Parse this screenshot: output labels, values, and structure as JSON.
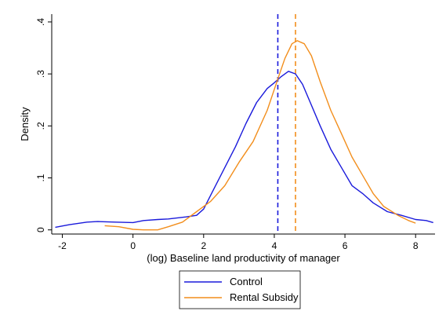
{
  "chart_data": {
    "type": "line",
    "xlabel": "(log) Baseline land productivity of manager",
    "ylabel": "Density",
    "xlim": [
      -2.3,
      8.55
    ],
    "ylim": [
      -0.008,
      0.415
    ],
    "xticks": [
      {
        "value": -2,
        "label": "-2"
      },
      {
        "value": 0,
        "label": "0"
      },
      {
        "value": 2,
        "label": "2"
      },
      {
        "value": 4,
        "label": "4"
      },
      {
        "value": 6,
        "label": "6"
      },
      {
        "value": 8,
        "label": "8"
      }
    ],
    "yticks": [
      {
        "value": 0,
        "label": "0"
      },
      {
        "value": 0.1,
        "label": ".1"
      },
      {
        "value": 0.2,
        "label": ".2"
      },
      {
        "value": 0.3,
        "label": ".3"
      },
      {
        "value": 0.4,
        "label": ".4"
      }
    ],
    "grid": false,
    "legend_position": "bottom",
    "series": [
      {
        "name": "Control",
        "color": "#1a1adb",
        "x": [
          -2.2,
          -1.8,
          -1.3,
          -1.0,
          -0.5,
          0.0,
          0.3,
          0.7,
          1.0,
          1.5,
          1.8,
          2.0,
          2.3,
          2.6,
          2.9,
          3.2,
          3.5,
          3.8,
          4.0,
          4.2,
          4.4,
          4.6,
          4.8,
          5.0,
          5.3,
          5.6,
          5.9,
          6.2,
          6.5,
          6.8,
          7.2,
          7.6,
          8.0,
          8.3,
          8.5
        ],
        "y": [
          0.005,
          0.01,
          0.015,
          0.016,
          0.015,
          0.014,
          0.018,
          0.02,
          0.021,
          0.025,
          0.028,
          0.04,
          0.08,
          0.12,
          0.16,
          0.205,
          0.245,
          0.272,
          0.283,
          0.295,
          0.305,
          0.3,
          0.28,
          0.248,
          0.2,
          0.155,
          0.12,
          0.085,
          0.07,
          0.052,
          0.035,
          0.028,
          0.02,
          0.018,
          0.014
        ]
      },
      {
        "name": "Rental Subsidy",
        "color": "#f28e1c",
        "x": [
          -0.8,
          -0.4,
          0.0,
          0.3,
          0.7,
          1.0,
          1.4,
          1.8,
          2.2,
          2.6,
          3.0,
          3.4,
          3.8,
          4.1,
          4.3,
          4.5,
          4.65,
          4.85,
          5.05,
          5.3,
          5.6,
          5.9,
          6.2,
          6.5,
          6.8,
          7.1,
          7.5,
          7.8,
          8.0
        ],
        "y": [
          0.008,
          0.006,
          0.001,
          0.0,
          0.0,
          0.006,
          0.015,
          0.035,
          0.055,
          0.085,
          0.13,
          0.17,
          0.23,
          0.29,
          0.33,
          0.358,
          0.364,
          0.358,
          0.335,
          0.285,
          0.23,
          0.185,
          0.14,
          0.105,
          0.07,
          0.045,
          0.028,
          0.018,
          0.013
        ]
      }
    ],
    "reference_lines": [
      {
        "axis": "x",
        "value": 4.1,
        "color": "#1a1adb",
        "style": "dashed"
      },
      {
        "axis": "x",
        "value": 4.6,
        "color": "#f28e1c",
        "style": "dashed"
      }
    ]
  }
}
